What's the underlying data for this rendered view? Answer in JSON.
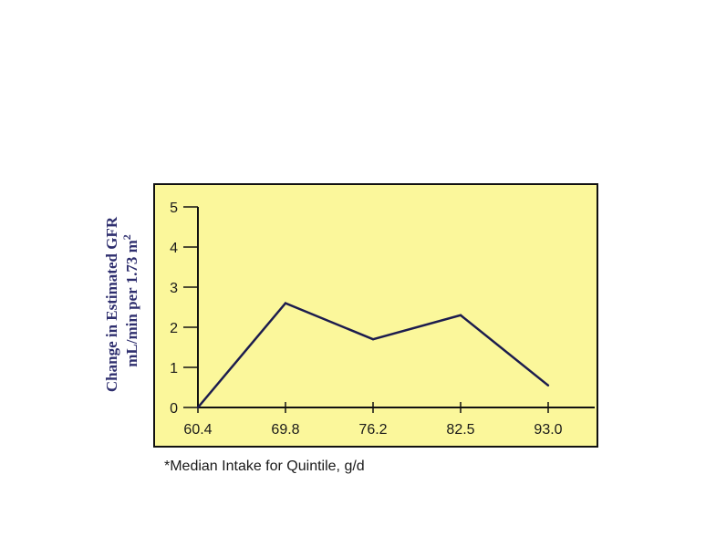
{
  "colors": {
    "plot_background": "#fbf79b",
    "frame": "#111111",
    "line": "#1c1c4e",
    "ylabel_text": "#2e2e6e"
  },
  "chart_data": {
    "type": "line",
    "title": "",
    "x": [
      "60.4",
      "69.8",
      "76.2",
      "82.5",
      "93.0"
    ],
    "series": [
      {
        "values": [
          0,
          2.6,
          1.7,
          2.3,
          0.55
        ]
      }
    ],
    "xlabel": "*Median Intake for Quintile, g/d",
    "ylabel_line1": "Change in Estimated GFR",
    "ylabel_line2": "mL/min per 1.73 m",
    "ylabel_superscript": "2",
    "yticks": [
      0,
      1,
      2,
      3,
      4,
      5
    ],
    "ylim": [
      0,
      5
    ],
    "grid": false,
    "legend": "none"
  }
}
